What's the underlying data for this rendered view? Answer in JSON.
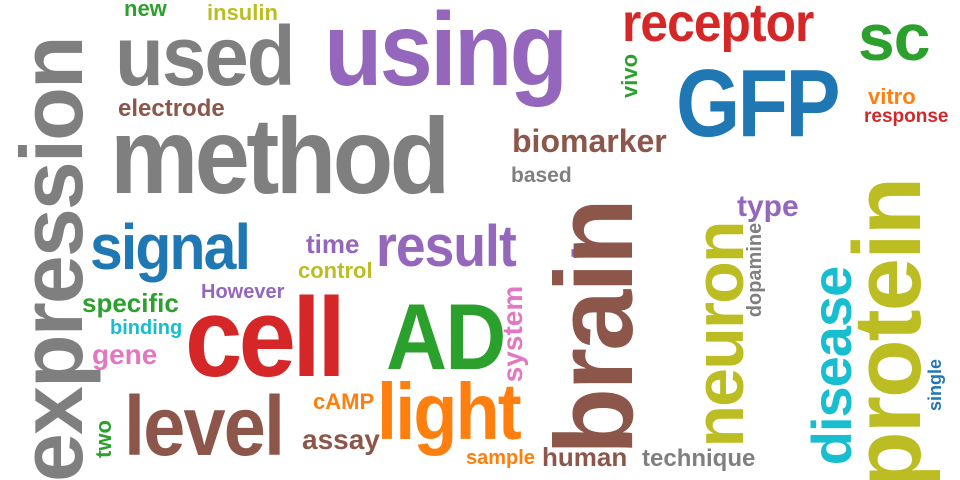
{
  "colors": {
    "gray": "#7f7f7f",
    "purple": "#9467bd",
    "blue": "#1f77b4",
    "red": "#d62728",
    "green": "#2ca02c",
    "olive": "#bcbd22",
    "brown": "#8c564b",
    "orange": "#ff7f0e",
    "cyan": "#17becf",
    "pink": "#e377c2"
  },
  "words": {
    "expression": "expression",
    "using": "using",
    "used": "used",
    "method": "method",
    "gfp": "GFP",
    "receptor": "receptor",
    "sc": "sc",
    "vitro": "vitro",
    "response": "response",
    "new": "new",
    "insulin": "insulin",
    "electrode": "electrode",
    "vivo": "vivo",
    "biomarker": "biomarker",
    "based": "based",
    "type": "type",
    "signal": "signal",
    "time": "time",
    "result": "result",
    "dash": "-",
    "control": "control",
    "however": "However",
    "specific": "specific",
    "binding": "binding",
    "gene": "gene",
    "cell": "cell",
    "ad": "AD",
    "system": "system",
    "brain": "brain",
    "neuron": "neuron",
    "dopamine": "dopamine",
    "disease": "disease",
    "protein": "protein",
    "single": "single",
    "level": "level",
    "camp": "cAMP",
    "light": "light",
    "two": "two",
    "assay": "assay",
    "sample": "sample",
    "human": "human",
    "technique": "technique"
  }
}
